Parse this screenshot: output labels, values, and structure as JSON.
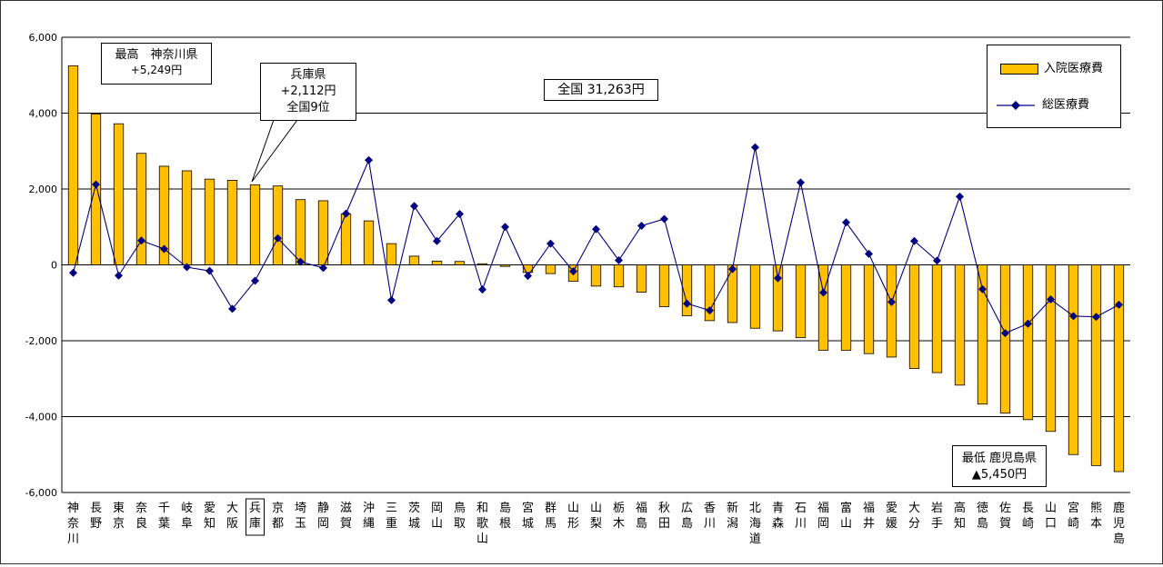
{
  "chart_data": {
    "type": "bar",
    "categories": [
      "神奈川",
      "長野",
      "東京",
      "奈良",
      "千葉",
      "岐阜",
      "愛知",
      "大阪",
      "兵庫",
      "京都",
      "埼玉",
      "静岡",
      "滋賀",
      "沖縄",
      "三重",
      "茨城",
      "岡山",
      "鳥取",
      "和歌山",
      "島根",
      "宮城",
      "群馬",
      "山形",
      "山梨",
      "栃木",
      "福島",
      "秋田",
      "広島",
      "香川",
      "新潟",
      "北海道",
      "青森",
      "石川",
      "福岡",
      "富山",
      "福井",
      "愛媛",
      "大分",
      "岩手",
      "高知",
      "徳島",
      "佐賀",
      "長崎",
      "山口",
      "宮崎",
      "熊本",
      "鹿児島"
    ],
    "series": [
      {
        "name": "入院医療費",
        "kind": "bar",
        "color": "#FFC000",
        "values": [
          5249,
          3980,
          3720,
          2940,
          2600,
          2480,
          2260,
          2230,
          2112,
          2080,
          1720,
          1690,
          1340,
          1160,
          560,
          230,
          100,
          90,
          30,
          -40,
          -200,
          -230,
          -430,
          -560,
          -580,
          -720,
          -1100,
          -1340,
          -1470,
          -1520,
          -1670,
          -1740,
          -1920,
          -2250,
          -2250,
          -2340,
          -2430,
          -2730,
          -2840,
          -3170,
          -3670,
          -3910,
          -4080,
          -4390,
          -5000,
          -5290,
          -5450
        ]
      },
      {
        "name": "総医療費",
        "kind": "line",
        "color": "#000080",
        "values": [
          -210,
          2120,
          -280,
          640,
          420,
          -60,
          -160,
          -1160,
          -420,
          700,
          80,
          -80,
          1350,
          2760,
          -930,
          1550,
          630,
          1340,
          -650,
          1000,
          -290,
          560,
          -170,
          940,
          120,
          1030,
          1210,
          -1020,
          -1200,
          -110,
          3100,
          -350,
          2170,
          -730,
          1120,
          290,
          -980,
          630,
          110,
          1800,
          -640,
          -1800,
          -1550,
          -910,
          -1350,
          -1370,
          -1050
        ]
      }
    ],
    "ylim": [
      -6000,
      6000
    ],
    "yticks": [
      {
        "v": 6000,
        "label": "6,000"
      },
      {
        "v": 4000,
        "label": "4,000"
      },
      {
        "v": 2000,
        "label": "2,000"
      },
      {
        "v": 0,
        "label": "0"
      },
      {
        "v": -2000,
        "label": "-2,000"
      },
      {
        "v": -4000,
        "label": "-4,000"
      },
      {
        "v": -6000,
        "label": "-6,000"
      }
    ],
    "grid": true,
    "highlight_category": "兵庫",
    "legend": {
      "position": "top-right",
      "bar_label": "入院医療費",
      "line_label": "総医療費"
    }
  },
  "annotations": {
    "max_line1": "最高　神奈川県",
    "max_line2": "+5,249円",
    "hyogo_line1": "兵庫県",
    "hyogo_line2": "+2,112円",
    "hyogo_line3": "全国9位",
    "national": "全国 31,263円",
    "min_line1": "最低 鹿児島県",
    "min_line2": "▲5,450円"
  }
}
